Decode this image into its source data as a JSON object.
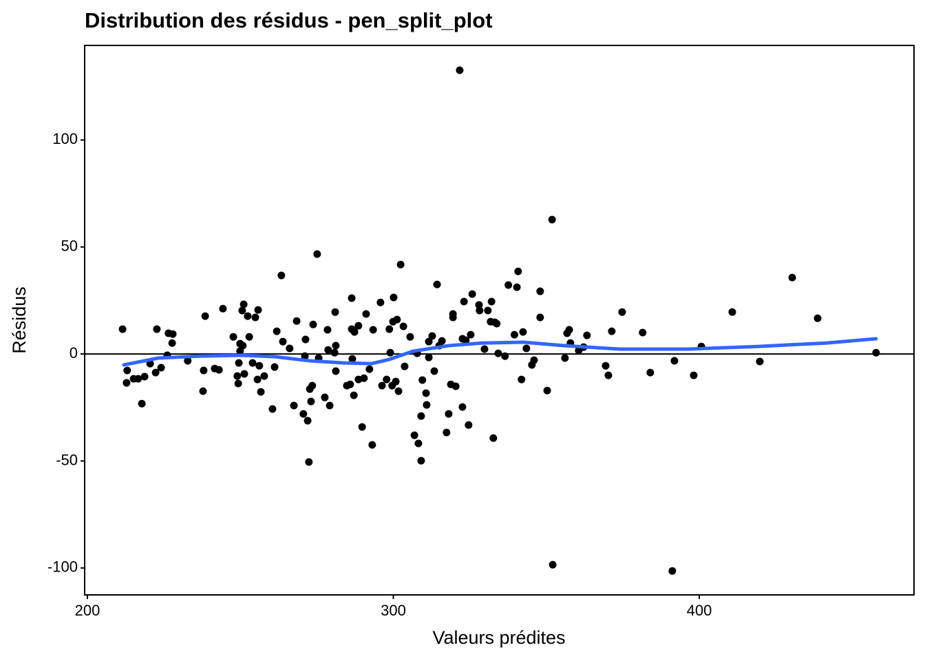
{
  "chart_data": {
    "type": "scatter",
    "title": "Distribution des résidus - pen_split_plot",
    "x_label": "Valeurs prédites",
    "y_label": "Résidus",
    "xlim": [
      199.1,
      470.2
    ],
    "xticks": [
      200,
      300,
      400
    ],
    "ylim": [
      -112.6,
      144.2
    ],
    "yticks": [
      -100,
      -50,
      0,
      50,
      100
    ],
    "hline": 0,
    "series": [
      {
        "color": "#000000",
        "x": [
          211.5,
          213.0,
          212.8,
          215.1,
          216.6,
          217.8,
          218.7,
          220.5,
          222.3,
          222.7,
          224.1,
          226.1,
          226.5,
          227.9,
          227.7,
          232.8,
          237.8,
          238.0,
          238.5,
          241.6,
          243.0,
          244.3,
          247.7,
          249.0,
          249.3,
          249.5,
          249.9,
          249.9,
          250.6,
          250.8,
          251.1,
          251.3,
          252.4,
          252.9,
          254.0,
          254.9,
          255.6,
          255.8,
          256.2,
          256.7,
          257.8,
          260.5,
          261.2,
          261.9,
          263.4,
          263.9,
          266.1,
          267.5,
          268.4,
          270.6,
          271.1,
          271.3,
          272.0,
          272.4,
          272.7,
          273.1,
          273.5,
          273.8,
          275.1,
          275.6,
          277.6,
          278.5,
          278.7,
          279.2,
          281.0,
          281.2,
          281.2,
          280.8,
          284.8,
          285.9,
          286.4,
          286.6,
          286.4,
          287.3,
          287.1,
          288.6,
          288.6,
          289.8,
          290.4,
          291.1,
          292.2,
          293.1,
          293.4,
          295.8,
          296.3,
          297.8,
          298.7,
          299.0,
          299.6,
          299.9,
          300.1,
          300.8,
          301.2,
          301.7,
          302.4,
          303.3,
          303.7,
          305.5,
          306.9,
          307.8,
          308.2,
          309.1,
          309.1,
          309.5,
          310.7,
          310.9,
          311.6,
          311.6,
          312.7,
          313.4,
          314.3,
          315.0,
          315.9,
          317.4,
          318.1,
          318.8,
          319.5,
          319.5,
          320.4,
          321.7,
          322.6,
          323.1,
          322.6,
          323.7,
          324.6,
          325.3,
          325.8,
          328.0,
          328.2,
          329.8,
          330.9,
          332.1,
          331.8,
          332.7,
          333.2,
          333.8,
          334.3,
          336.5,
          337.6,
          339.6,
          340.4,
          340.8,
          341.9,
          342.4,
          343.5,
          345.3,
          346.0,
          348.0,
          348.0,
          350.3,
          351.9,
          352.1,
          356.1,
          356.8,
          357.5,
          357.9,
          360.6,
          362.2,
          363.3,
          369.4,
          370.3,
          371.4,
          374.8,
          381.5,
          384.0,
          391.2,
          391.9,
          398.2,
          400.7,
          410.8,
          419.8,
          430.4,
          438.7,
          457.8
        ],
        "values": [
          11.6,
          -7.7,
          -13.5,
          -11.6,
          -11.6,
          -23.2,
          -10.6,
          -4.5,
          -8.7,
          11.6,
          -6.4,
          -0.6,
          9.7,
          9.3,
          5.1,
          -3.2,
          -17.4,
          -7.7,
          17.7,
          -6.8,
          -7.4,
          21.2,
          8.0,
          -10.3,
          -13.8,
          -4.2,
          4.8,
          1.3,
          20.3,
          3.9,
          23.2,
          -9.3,
          17.7,
          8.0,
          -4.2,
          17.1,
          -11.9,
          20.6,
          -5.5,
          -17.7,
          -10.3,
          -25.7,
          -6.1,
          10.6,
          36.7,
          5.8,
          2.6,
          -24.1,
          15.4,
          -28.0,
          -1.0,
          6.8,
          -31.2,
          -50.5,
          -16.4,
          -22.2,
          -14.8,
          13.8,
          46.7,
          -1.9,
          -20.3,
          11.3,
          1.9,
          -24.1,
          19.6,
          3.9,
          -8.0,
          0.6,
          -14.8,
          -14.2,
          26.1,
          -2.3,
          11.6,
          10.3,
          -19.3,
          13.2,
          -11.9,
          -34.1,
          -11.3,
          18.7,
          -7.1,
          -42.5,
          11.3,
          24.1,
          -14.8,
          -11.9,
          11.6,
          0.6,
          -14.8,
          15.1,
          26.4,
          -12.9,
          16.1,
          -17.4,
          41.8,
          12.9,
          -5.8,
          8.0,
          -38.0,
          0.3,
          -41.8,
          -49.9,
          -29.0,
          -12.2,
          -18.3,
          -23.8,
          -1.6,
          5.8,
          8.4,
          -8.0,
          32.5,
          3.9,
          6.1,
          -36.7,
          -28.0,
          -14.2,
          18.7,
          17.1,
          -15.1,
          132.6,
          -24.8,
          24.5,
          7.1,
          6.4,
          -33.2,
          9.0,
          28.0,
          22.9,
          20.3,
          2.3,
          20.3,
          24.5,
          15.1,
          -39.3,
          14.8,
          14.2,
          0.3,
          -1.0,
          32.2,
          9.0,
          31.2,
          38.6,
          -11.9,
          10.3,
          2.6,
          -5.1,
          -2.9,
          29.3,
          17.1,
          -17.1,
          62.8,
          -98.5,
          -1.9,
          9.7,
          11.3,
          5.1,
          1.6,
          3.2,
          8.7,
          -5.5,
          -10.0,
          10.6,
          19.6,
          10.0,
          -8.7,
          -101.4,
          -3.2,
          -10.0,
          3.5,
          19.6,
          -3.5,
          35.7,
          16.7,
          0.6
        ]
      },
      {
        "color": "#3366ff",
        "x": [
          211.9,
          223.2,
          236.7,
          250.2,
          261.4,
          272.7,
          283.9,
          292.9,
          298.5,
          306.4,
          318.1,
          328.9,
          342.4,
          355.9,
          373.9,
          396.4,
          418.9,
          441.4,
          457.8
        ],
        "values": [
          -5.1,
          -1.9,
          -1.0,
          -0.6,
          -1.3,
          -3.2,
          -4.2,
          -4.5,
          -2.6,
          1.3,
          3.9,
          5.1,
          5.5,
          3.9,
          2.3,
          2.3,
          3.5,
          5.1,
          7.1
        ]
      }
    ]
  }
}
